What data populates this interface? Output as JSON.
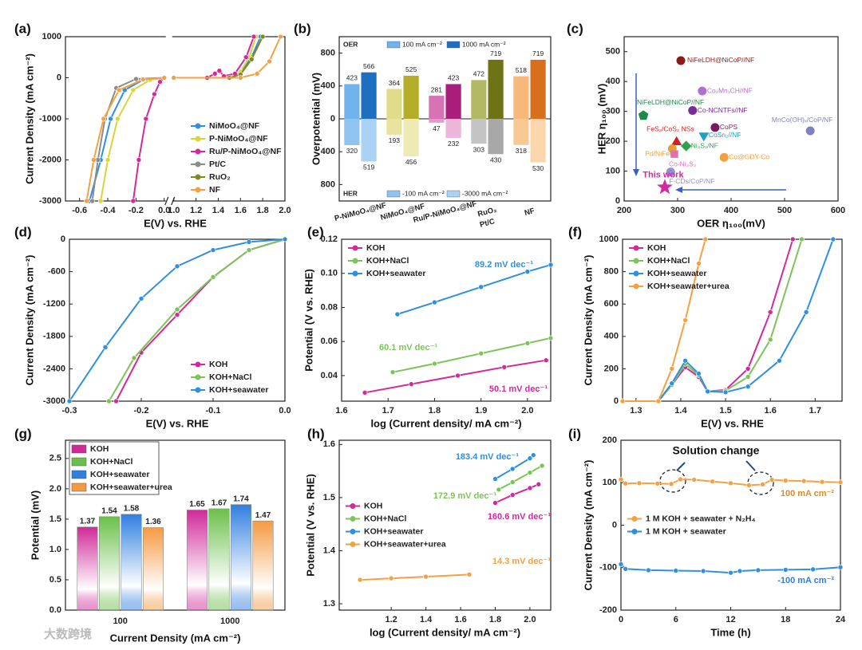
{
  "watermark": "大数跨境",
  "chart_data": [
    {
      "panel": "(a)",
      "type": "line",
      "markers": true,
      "xbreak": true,
      "legend": "lower-right",
      "xlabel": "E(V) vs. RHE",
      "ylabel": "Current Density (mA cm⁻²)",
      "xlim": [
        -0.7,
        2.0
      ],
      "xticks": [
        -0.6,
        -0.4,
        -0.2,
        {
          "value": 0,
          "label": "0.0"
        },
        {
          "value": 1,
          "label": "1.0"
        },
        1.2,
        1.4,
        1.6,
        1.8,
        {
          "value": 2,
          "label": "2.0"
        }
      ],
      "ylim": [
        -3000,
        1000
      ],
      "yticks": [
        -3000,
        -2000,
        -1000,
        0,
        1000
      ],
      "series": [
        {
          "name": "NiMoO₄@NF",
          "color": "#2f8fe0",
          "x": [
            -0.53,
            -0.45,
            -0.38,
            -0.28,
            -0.15,
            0.0,
            null,
            1.0,
            1.5,
            1.6,
            1.7,
            1.78
          ],
          "values": [
            -3000,
            -2000,
            -1000,
            -300,
            -50,
            0,
            null,
            0,
            0,
            100,
            500,
            1000
          ]
        },
        {
          "name": "P-NiMoO₄@NF",
          "color": "#d9d437",
          "x": [
            -0.45,
            -0.4,
            -0.33,
            -0.22,
            -0.1,
            0.0,
            null,
            1.0,
            1.5,
            1.6,
            1.68,
            1.74
          ],
          "values": [
            -3000,
            -2000,
            -1000,
            -300,
            -50,
            0,
            null,
            0,
            0,
            150,
            500,
            1000
          ]
        },
        {
          "name": "Ru/P-NiMoO₄@NF",
          "color": "#d4289c",
          "x": [
            -0.22,
            -0.18,
            -0.13,
            -0.07,
            -0.03,
            0.0,
            null,
            1.0,
            1.3,
            1.37,
            1.41,
            1.45,
            1.55,
            1.65,
            1.72
          ],
          "values": [
            -3000,
            -2000,
            -1000,
            -400,
            -100,
            0,
            null,
            0,
            0,
            100,
            170,
            40,
            100,
            500,
            1000
          ]
        },
        {
          "name": "Pt/C",
          "color": "#8c8c8c",
          "x": [
            -0.51,
            -0.47,
            -0.42,
            -0.34,
            -0.2,
            0.0
          ],
          "values": [
            -3000,
            -2000,
            -1000,
            -250,
            -30,
            0
          ]
        },
        {
          "name": "RuO₂",
          "color": "#7f8a1c",
          "x": [
            1.0,
            1.5,
            1.6,
            1.7,
            1.8
          ],
          "values": [
            0,
            0,
            80,
            450,
            1000
          ]
        },
        {
          "name": "NF",
          "color": "#f5a142",
          "x": [
            -0.55,
            -0.5,
            -0.43,
            -0.32,
            -0.15,
            0.0,
            null,
            1.0,
            1.6,
            1.75,
            1.86,
            1.96
          ],
          "values": [
            -3000,
            -2000,
            -1000,
            -300,
            -40,
            0,
            null,
            0,
            0,
            100,
            400,
            1000
          ]
        }
      ]
    },
    {
      "panel": "(b)",
      "type": "bar",
      "legend": "split",
      "data_labels": true,
      "zero_line": true,
      "ylabel": "Overpotential (mV)",
      "upper_label": "OER",
      "lower_label": "HER",
      "categories": [
        [
          "P-NiMoO₄@NF"
        ],
        [
          "NiMoO₄@NF"
        ],
        [
          "Ru/P-NiMoO₄@NF"
        ],
        [
          "RuO₂",
          "Pt/C"
        ],
        [
          "NF"
        ]
      ],
      "ylim": [
        -1000,
        1000
      ],
      "yticks": [
        {
          "value": -800,
          "label": "800"
        },
        {
          "value": -400,
          "label": "400"
        },
        0,
        400,
        800
      ],
      "series": [
        {
          "name": "100 mA cm⁻²",
          "direction": "up",
          "colors": [
            "#6fb3ec",
            "#e0dc8a",
            "#d773b4",
            "#b3b865",
            "#f7b97a"
          ],
          "values": [
            423,
            364,
            281,
            472,
            518
          ]
        },
        {
          "name": "1000 mA cm⁻²",
          "direction": "up",
          "colors": [
            "#1e6fbf",
            "#b3ad2a",
            "#a81e7a",
            "#6e7415",
            "#d96f1e"
          ],
          "values": [
            566,
            525,
            423,
            719,
            719
          ]
        },
        {
          "name": "-100 mA cm⁻²",
          "direction": "down",
          "colors": [
            "#8fc3f0",
            "#e8e4a0",
            "#e39acb",
            "#c4c4c4",
            "#f9c994"
          ],
          "values": [
            320,
            193,
            47,
            303,
            318
          ]
        },
        {
          "name": "-3000 mA cm⁻²",
          "direction": "down",
          "colors": [
            "#a9d2f5",
            "#eeeab5",
            "#ecb5da",
            "#a8a8a8",
            "#fbd6ad"
          ],
          "values": [
            519,
            456,
            232,
            430,
            530
          ]
        }
      ]
    },
    {
      "panel": "(c)",
      "type": "scatter",
      "xlabel": "OER η₁₀₀(mV)",
      "ylabel": "HER η₁₀₀ (mV)",
      "xlim": [
        200,
        600
      ],
      "xticks": [
        200,
        300,
        400,
        500,
        600
      ],
      "ylim": [
        0,
        550
      ],
      "yticks": [
        0,
        100,
        200,
        300,
        400,
        500
      ],
      "points": [
        {
          "label": "NiFeLDH@NiCoP//NF",
          "x": 306,
          "y": 470,
          "color": "#8b1a1a",
          "marker": "circle"
        },
        {
          "label": "Co₂Mn₁CH//NF",
          "x": 346,
          "y": 368,
          "color": "#b070d0",
          "marker": "circle"
        },
        {
          "label": "NiFeLDH@NiCoP//NF",
          "x": 236,
          "y": 286,
          "color": "#1e8a4a",
          "marker": "pentagon"
        },
        {
          "label": "Co-NCNTFs//NF",
          "x": 328,
          "y": 303,
          "color": "#7a2a9a",
          "marker": "circle"
        },
        {
          "label": "MnCo(OH)ₓ/CoP/NF",
          "x": 548,
          "y": 235,
          "color": "#8080c0",
          "marker": "circle"
        },
        {
          "label": "CoPS",
          "x": 370,
          "y": 246,
          "color": "#7a1a5a",
          "marker": "circle"
        },
        {
          "label": "FeS₂/CoS₂ NSs",
          "x": 298,
          "y": 197,
          "color": "#d42020",
          "marker": "triangle"
        },
        {
          "label": "CoSn₂//NF",
          "x": 349,
          "y": 219,
          "color": "#20a0c0",
          "marker": "triangle-down"
        },
        {
          "label": "Ni₃S₂/NF",
          "x": 316,
          "y": 184,
          "color": "#30a050",
          "marker": "diamond"
        },
        {
          "label": "Pd/NiFeOx",
          "x": 290,
          "y": 175,
          "color": "#e8a030",
          "marker": "circle"
        },
        {
          "label": "Cu@GDY-Co",
          "x": 387,
          "y": 146,
          "color": "#f0a040",
          "marker": "circle"
        },
        {
          "label": "Co-Ni₃S₂",
          "x": 294,
          "y": 157,
          "color": "#e070b0",
          "marker": "square"
        },
        {
          "label": "F-CDs/CoP/NF",
          "x": 287,
          "y": 97,
          "color": "#9090d0",
          "marker": "circle"
        },
        {
          "label": "This work",
          "x": 276,
          "y": 46,
          "color": "#d42aa0",
          "marker": "star"
        }
      ]
    },
    {
      "panel": "(d)",
      "type": "line",
      "markers": true,
      "legend": "lower-right",
      "xlabel": "E(V) vs. RHE",
      "ylabel": "Current Density (mA cm⁻²)",
      "xlim": [
        -0.3,
        0
      ],
      "xticks": [
        -0.3,
        -0.2,
        -0.1,
        {
          "value": 0,
          "label": "0.0"
        }
      ],
      "ylim": [
        -3000,
        0
      ],
      "yticks": [
        -3000,
        -2400,
        -1800,
        -1200,
        -600,
        0
      ],
      "series": [
        {
          "name": "KOH",
          "color": "#d4289c",
          "x": [
            -0.235,
            -0.2,
            -0.15,
            -0.1,
            -0.05,
            0.0
          ],
          "values": [
            -3000,
            -2100,
            -1400,
            -700,
            -200,
            0
          ]
        },
        {
          "name": "KOH+NaCl",
          "color": "#7cc45a",
          "x": [
            -0.245,
            -0.21,
            -0.15,
            -0.1,
            -0.05,
            0.0
          ],
          "values": [
            -3000,
            -2200,
            -1300,
            -700,
            -200,
            0
          ]
        },
        {
          "name": "KOH+seawater",
          "color": "#2f8fe0",
          "x": [
            -0.3,
            -0.25,
            -0.2,
            -0.15,
            -0.1,
            -0.05,
            0.0
          ],
          "values": [
            -3000,
            -2000,
            -1100,
            -500,
            -200,
            -50,
            0
          ]
        }
      ]
    },
    {
      "panel": "(e)",
      "type": "line",
      "markers": true,
      "legend": "upper-left",
      "xlabel": "log (Current density/ mA cm⁻²)",
      "ylabel": "Potential (V vs. RHE)",
      "xlim": [
        1.6,
        2.05
      ],
      "xticks": [
        1.6,
        1.7,
        1.8,
        1.9,
        {
          "value": 2,
          "label": "2.0"
        }
      ],
      "ylim": [
        0.025,
        0.12
      ],
      "yticks": [
        0.04,
        0.06,
        0.08,
        {
          "value": 0.1,
          "label": "0.10"
        },
        0.12
      ],
      "series": [
        {
          "name": "KOH",
          "color": "#d4289c",
          "slope_label": "50.1 mV dec⁻¹",
          "x": [
            1.65,
            1.75,
            1.85,
            1.95,
            2.04
          ],
          "values": [
            0.03,
            0.035,
            0.04,
            0.045,
            0.049
          ]
        },
        {
          "name": "KOH+NaCl",
          "color": "#7cc45a",
          "slope_label": "60.1 mV dec⁻¹",
          "x": [
            1.71,
            1.8,
            1.9,
            2.0,
            2.05
          ],
          "values": [
            0.042,
            0.047,
            0.053,
            0.059,
            0.062
          ]
        },
        {
          "name": "KOH+seawater",
          "color": "#2f8fe0",
          "slope_label": "89.2 mV dec⁻¹",
          "x": [
            1.72,
            1.8,
            1.9,
            2.0,
            2.05
          ],
          "values": [
            0.076,
            0.083,
            0.092,
            0.101,
            0.105
          ]
        }
      ]
    },
    {
      "panel": "(f)",
      "type": "line",
      "markers": true,
      "legend": "upper-left",
      "xlabel": "E(V) vs. RHE",
      "ylabel": "Current Density (mA cm⁻²)",
      "xlim": [
        1.27,
        1.76
      ],
      "xticks": [
        1.3,
        1.4,
        1.5,
        1.6,
        1.7
      ],
      "ylim": [
        0,
        1000
      ],
      "yticks": [
        0,
        200,
        400,
        600,
        800,
        1000
      ],
      "series": [
        {
          "name": "KOH",
          "color": "#d4289c",
          "x": [
            1.27,
            1.35,
            1.38,
            1.41,
            1.44,
            1.46,
            1.5,
            1.55,
            1.6,
            1.65
          ],
          "values": [
            0,
            0,
            100,
            210,
            150,
            60,
            70,
            200,
            550,
            1000
          ]
        },
        {
          "name": "KOH+NaCl",
          "color": "#7cc45a",
          "x": [
            1.27,
            1.35,
            1.38,
            1.41,
            1.44,
            1.46,
            1.5,
            1.55,
            1.6,
            1.67
          ],
          "values": [
            0,
            0,
            100,
            230,
            160,
            60,
            65,
            150,
            380,
            1000
          ]
        },
        {
          "name": "KOH+seawater",
          "color": "#2f8fe0",
          "x": [
            1.27,
            1.35,
            1.38,
            1.41,
            1.44,
            1.46,
            1.5,
            1.55,
            1.62,
            1.68,
            1.74
          ],
          "values": [
            0,
            0,
            110,
            250,
            170,
            60,
            55,
            90,
            250,
            550,
            1000
          ]
        },
        {
          "name": "KOH+seawater+urea",
          "color": "#f5a142",
          "x": [
            1.27,
            1.35,
            1.38,
            1.41,
            1.44,
            1.455
          ],
          "values": [
            0,
            0,
            200,
            500,
            850,
            1000
          ]
        }
      ]
    },
    {
      "panel": "(g)",
      "type": "bar",
      "legend": "upper-left",
      "data_labels": true,
      "gradient": true,
      "xlabel": "Current Density (mA cm⁻²)",
      "ylabel": "Potential (mV)",
      "categories": [
        [
          "100"
        ],
        [
          "1000"
        ]
      ],
      "ylim": [
        0,
        2.8
      ],
      "yticks": [
        {
          "value": 0,
          "label": "0.0"
        },
        0.5,
        {
          "value": 1,
          "label": "1.0"
        },
        1.5,
        {
          "value": 2,
          "label": "2.0"
        },
        2.5
      ],
      "series": [
        {
          "name": "KOH",
          "color": "#d02a9a",
          "values": [
            1.37,
            1.65
          ]
        },
        {
          "name": "KOH+NaCl",
          "color": "#6cc04a",
          "values": [
            1.54,
            1.67
          ]
        },
        {
          "name": "KOH+seawater",
          "color": "#2f7fe0",
          "values": [
            1.58,
            1.74
          ]
        },
        {
          "name": "KOH+seawater+urea",
          "color": "#f59a42",
          "values": [
            1.36,
            1.47
          ]
        }
      ]
    },
    {
      "panel": "(h)",
      "type": "line",
      "markers": true,
      "legend": "center-left",
      "xlabel": "log (Current density/ mA cm⁻²)",
      "ylabel": "Potential (V vs. RHE)",
      "xlim": [
        0.9,
        2.12
      ],
      "xticks": [
        1.2,
        1.4,
        1.6,
        1.8,
        {
          "value": 2,
          "label": "2.0"
        }
      ],
      "ylim": [
        1.288,
        1.608
      ],
      "yticks": [
        1.3,
        1.4,
        1.5,
        1.6
      ],
      "series": [
        {
          "name": "KOH",
          "color": "#d4289c",
          "slope_label": "160.6 mV dec⁻¹",
          "x": [
            1.8,
            1.9,
            2.0,
            2.05
          ],
          "values": [
            1.49,
            1.505,
            1.518,
            1.525
          ]
        },
        {
          "name": "KOH+NaCl",
          "color": "#7cc45a",
          "slope_label": "172.9 mV dec⁻¹",
          "x": [
            1.82,
            1.9,
            2.0,
            2.07
          ],
          "values": [
            1.515,
            1.529,
            1.547,
            1.56
          ]
        },
        {
          "name": "KOH+seawater",
          "color": "#2f8fe0",
          "slope_label": "183.4 mV dec⁻¹",
          "x": [
            1.8,
            1.9,
            2.0,
            2.02
          ],
          "values": [
            1.535,
            1.554,
            1.574,
            1.58
          ]
        },
        {
          "name": "KOH+seawater+urea",
          "color": "#f5a142",
          "slope_label": "14.3 mV dec⁻¹",
          "x": [
            1.02,
            1.2,
            1.4,
            1.65
          ],
          "values": [
            1.345,
            1.348,
            1.351,
            1.355
          ]
        }
      ]
    },
    {
      "panel": "(i)",
      "type": "line",
      "markers": true,
      "legend": "center-left",
      "xlabel": "Time (h)",
      "ylabel": "Current Density (mA cm⁻²)",
      "xlim": [
        0,
        24
      ],
      "xticks": [
        0,
        6,
        12,
        18,
        24
      ],
      "ylim": [
        -200,
        200
      ],
      "yticks": [
        -200,
        -100,
        0,
        100,
        200
      ],
      "series": [
        {
          "name": "1 M KOH + seawater + N₂H₄",
          "color": "#f5a142",
          "x": [
            0,
            0.5,
            2,
            4,
            5.5,
            6.5,
            8,
            10,
            12,
            14,
            15.5,
            16.5,
            18,
            20,
            22,
            24
          ],
          "values": [
            108,
            98,
            99,
            98,
            97,
            108,
            107,
            103,
            99,
            94,
            96,
            107,
            105,
            104,
            102,
            101
          ]
        },
        {
          "name": "1 M KOH + seawater",
          "color": "#2f8fe0",
          "x": [
            0,
            0.5,
            3,
            6,
            9,
            12,
            13,
            15,
            18,
            21,
            24
          ],
          "values": [
            -92,
            -103,
            -106,
            -107,
            -108,
            -112,
            -108,
            -106,
            -105,
            -104,
            -99
          ]
        }
      ],
      "annotations": [
        {
          "text": "Solution change"
        },
        {
          "text": "100 mA cm⁻²",
          "color": "#e08a20"
        },
        {
          "text": "-100 mA cm⁻²",
          "color": "#2f7fe0"
        }
      ]
    }
  ]
}
